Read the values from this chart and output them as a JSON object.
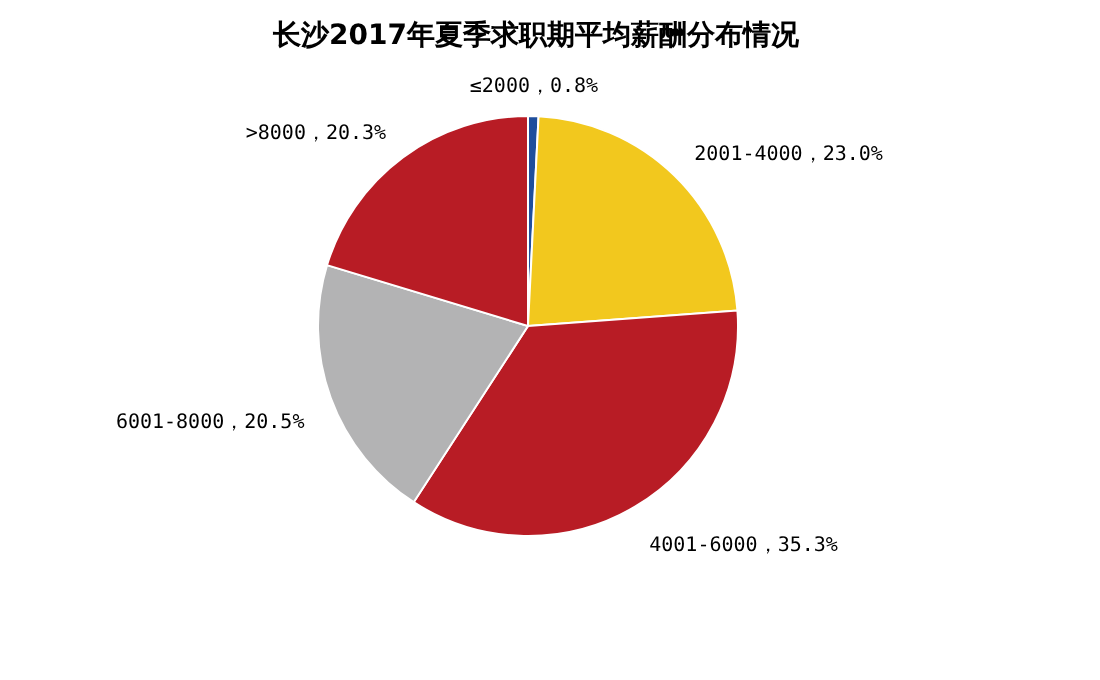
{
  "chart_data": {
    "type": "pie",
    "title": "长沙2017年夏季求职期平均薪酬分布情况",
    "categories": [
      "≤2000",
      "2001-4000",
      "4001-6000",
      "6001-8000",
      ">8000"
    ],
    "values": [
      0.8,
      23.0,
      35.3,
      20.5,
      20.3
    ],
    "colors": [
      "#1f4e9c",
      "#f2c81e",
      "#b81c25",
      "#b3b3b4",
      "#b81c25"
    ],
    "value_labels": [
      "，0.8%",
      "，23.0%",
      "，35.3%",
      "，20.5%",
      "，20.3%"
    ]
  }
}
